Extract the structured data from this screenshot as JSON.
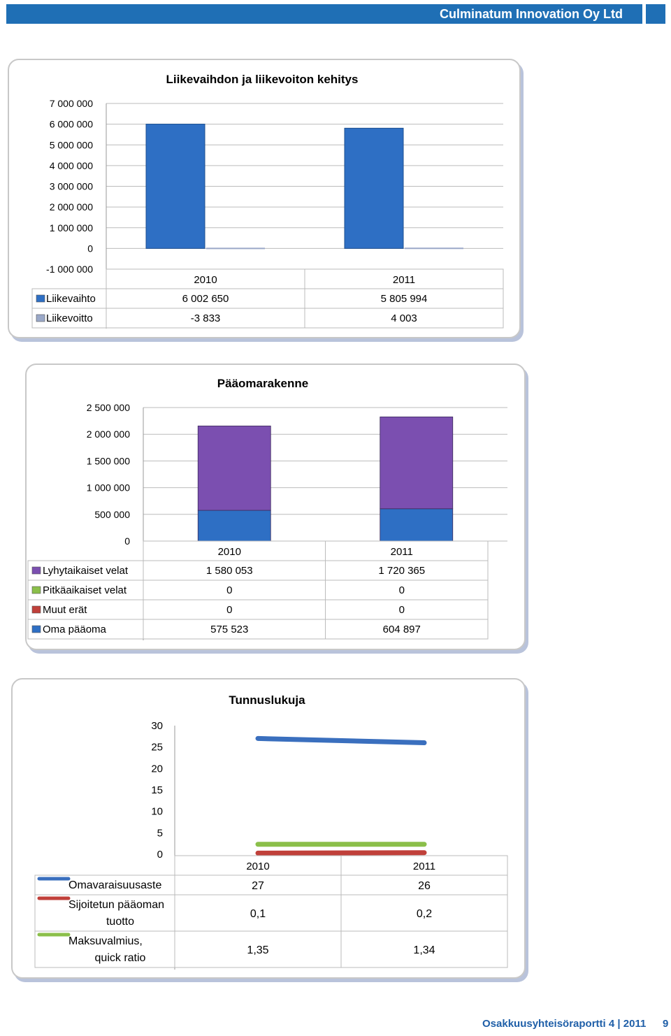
{
  "header": {
    "company": "Culminatum Innovation Oy Ltd"
  },
  "footer": {
    "report": "Osakkuusyhteisöraportti 4 | 2011",
    "page": "9"
  },
  "chart_data": [
    {
      "type": "bar",
      "title": "Liikevaihdon ja liikevoiton  kehitys",
      "categories": [
        "2010",
        "2011"
      ],
      "ylim": [
        -1000000,
        7000000
      ],
      "yticks": [
        "7 000 000",
        "6 000 000",
        "5 000 000",
        "4 000 000",
        "3 000 000",
        "2 000 000",
        "1 000 000",
        "0",
        "-1 000 000"
      ],
      "ytick_values": [
        7000000,
        6000000,
        5000000,
        4000000,
        3000000,
        2000000,
        1000000,
        0,
        -1000000
      ],
      "series": [
        {
          "name": "Liikevaihto",
          "values": [
            6002650,
            5805994
          ],
          "labels": [
            "6 002 650",
            "5 805 994"
          ],
          "color": "#2e6fc4"
        },
        {
          "name": "Liikevoitto",
          "values": [
            -3833,
            4003
          ],
          "labels": [
            "-3 833",
            "4 003"
          ],
          "color": "#9aa8c8"
        }
      ],
      "legend": "data table",
      "grid": true
    },
    {
      "type": "bar",
      "stacked": true,
      "title": "Pääomarakenne",
      "categories": [
        "2010",
        "2011"
      ],
      "ylim": [
        0,
        2500000
      ],
      "yticks": [
        "2 500 000",
        "2 000 000",
        "1 500 000",
        "1 000 000",
        "500 000",
        "0"
      ],
      "ytick_values": [
        2500000,
        2000000,
        1500000,
        1000000,
        500000,
        0
      ],
      "series": [
        {
          "name": "Lyhytaikaiset velat",
          "values": [
            1580053,
            1720365
          ],
          "labels": [
            "1 580 053",
            "1 720 365"
          ],
          "color": "#7b4fb0"
        },
        {
          "name": "Pitkäaikaiset velat",
          "values": [
            0,
            0
          ],
          "labels": [
            "0",
            "0"
          ],
          "color": "#8bbf4a"
        },
        {
          "name": "Muut erät",
          "values": [
            0,
            0
          ],
          "labels": [
            "0",
            "0"
          ],
          "color": "#c0403a"
        },
        {
          "name": "Oma pääoma",
          "values": [
            575523,
            604897
          ],
          "labels": [
            "575 523",
            "604 897"
          ],
          "color": "#2e6fc4"
        }
      ],
      "legend": "data table",
      "grid": true
    },
    {
      "type": "line",
      "title": "Tunnuslukuja",
      "categories": [
        "2010",
        "2011"
      ],
      "ylim": [
        0,
        30
      ],
      "yticks": [
        "30",
        "25",
        "20",
        "15",
        "10",
        "5",
        "0"
      ],
      "ytick_values": [
        30,
        25,
        20,
        15,
        10,
        5,
        0
      ],
      "series": [
        {
          "name": "Omavaraisuusaste",
          "name_lines": [
            "Omavaraisuusaste"
          ],
          "values": [
            27,
            26
          ],
          "labels": [
            "27",
            "26"
          ],
          "color": "#3a6fbe"
        },
        {
          "name": "Sijoitetun pääoman tuotto",
          "name_lines": [
            "Sijoitetun pääoman",
            "tuotto"
          ],
          "values": [
            0.1,
            0.2
          ],
          "labels": [
            "0,1",
            "0,2"
          ],
          "color": "#c0403a"
        },
        {
          "name": "Maksuvalmius, quick ratio",
          "name_lines": [
            "Maksuvalmius,",
            "quick ratio"
          ],
          "values": [
            1.35,
            1.34
          ],
          "labels": [
            "1,35",
            "1,34"
          ],
          "color": "#8bbf4a"
        }
      ],
      "legend": "data table",
      "grid": false
    }
  ]
}
